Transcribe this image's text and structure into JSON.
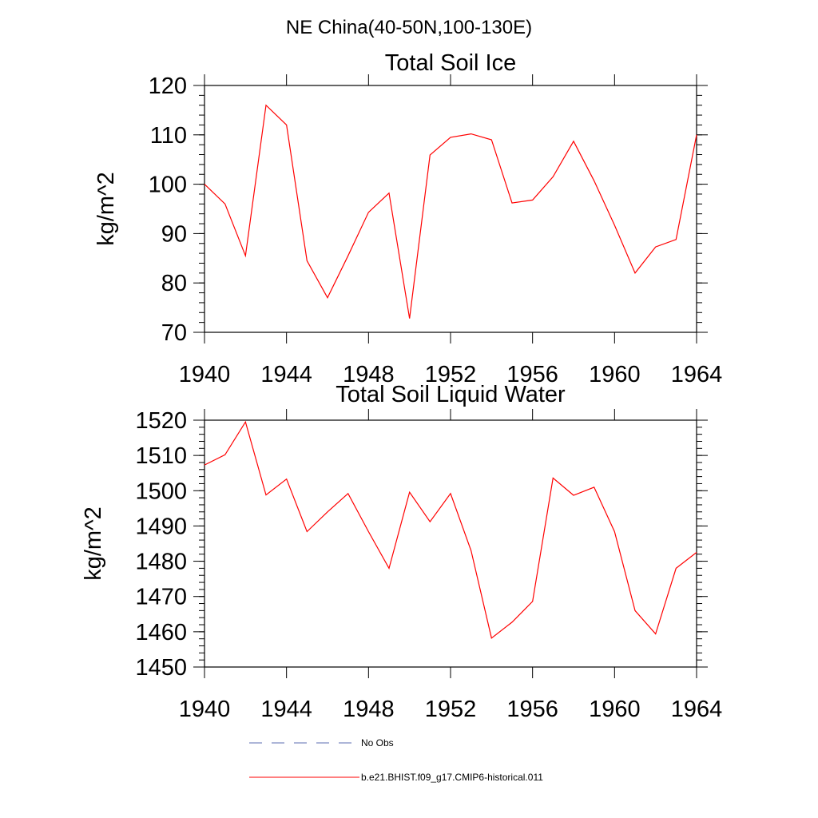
{
  "figure": {
    "main_title": "NE China(40-50N,100-130E)"
  },
  "legend": {
    "obs_label": "No Obs",
    "model_label": "b.e21.BHIST.f09_g17.CMIP6-historical.011",
    "obs_color": "#5b6eb0",
    "model_color": "#ff0000"
  },
  "chart_data": [
    {
      "type": "line",
      "title": "Total Soil Ice",
      "xlabel": "",
      "ylabel": "kg/m^2",
      "xlim": [
        1940,
        1964
      ],
      "ylim": [
        70,
        120
      ],
      "x_ticks": [
        1940,
        1944,
        1948,
        1952,
        1956,
        1960,
        1964
      ],
      "y_ticks": [
        70,
        80,
        90,
        100,
        110,
        120
      ],
      "series": [
        {
          "name": "b.e21.BHIST.f09_g17.CMIP6-historical.011",
          "color": "#ff0000",
          "x": [
            1940,
            1941,
            1942,
            1943,
            1944,
            1945,
            1946,
            1947,
            1948,
            1949,
            1950,
            1951,
            1952,
            1953,
            1954,
            1955,
            1956,
            1957,
            1958,
            1959,
            1960,
            1961,
            1962,
            1963,
            1964
          ],
          "values": [
            100,
            96,
            85.5,
            116,
            112,
            84.5,
            77,
            85.5,
            94.3,
            98.2,
            72.8,
            105.9,
            109.5,
            110.2,
            109,
            96.2,
            96.8,
            101.5,
            108.7,
            100.7,
            91.7,
            82,
            87.3,
            88.8,
            110
          ]
        }
      ]
    },
    {
      "type": "line",
      "title": "Total Soil Liquid Water",
      "xlabel": "",
      "ylabel": "kg/m^2",
      "xlim": [
        1940,
        1964
      ],
      "ylim": [
        1450,
        1520
      ],
      "x_ticks": [
        1940,
        1944,
        1948,
        1952,
        1956,
        1960,
        1964
      ],
      "y_ticks": [
        1450,
        1460,
        1470,
        1480,
        1490,
        1500,
        1510,
        1520
      ],
      "series": [
        {
          "name": "b.e21.BHIST.f09_g17.CMIP6-historical.011",
          "color": "#ff0000",
          "x": [
            1940,
            1941,
            1942,
            1943,
            1944,
            1945,
            1946,
            1947,
            1948,
            1949,
            1950,
            1951,
            1952,
            1953,
            1954,
            1955,
            1956,
            1957,
            1958,
            1959,
            1960,
            1961,
            1962,
            1963,
            1964
          ],
          "values": [
            1507.3,
            1510.2,
            1519.5,
            1498.8,
            1503.3,
            1488.4,
            1494,
            1499.2,
            1488.4,
            1478,
            1499.6,
            1491.2,
            1499.2,
            1483,
            1458.2,
            1462.7,
            1468.6,
            1503.6,
            1498.7,
            1501,
            1488.4,
            1466,
            1459.4,
            1478,
            1482.5
          ]
        }
      ]
    }
  ]
}
